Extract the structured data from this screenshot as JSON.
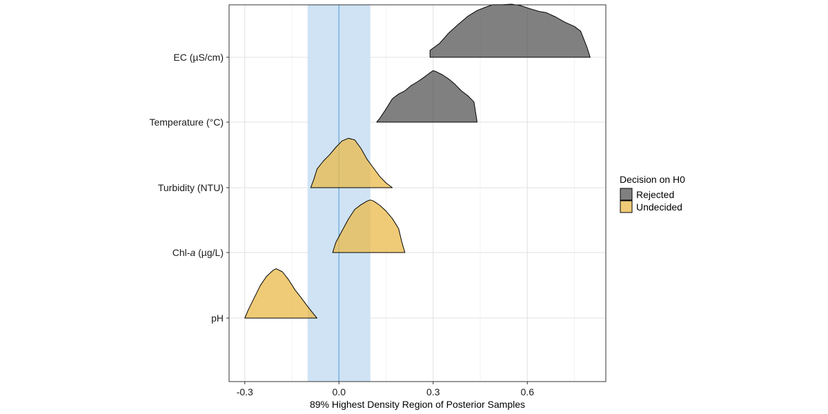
{
  "chart_data": {
    "type": "ridgeline",
    "xlabel": "89% Highest Density Region of Posterior Samples",
    "xlim": [
      -0.35,
      0.85
    ],
    "x_ticks": [
      -0.3,
      0.0,
      0.3,
      0.6
    ],
    "x_tick_labels": [
      "-0.3",
      "0.0",
      "0.3",
      "0.6"
    ],
    "rope": {
      "lower": -0.1,
      "upper": 0.1,
      "center": 0.0,
      "color": "#cfe3f5",
      "line_color": "#7ab0dc"
    },
    "categories": [
      {
        "label": "EC (µS/cm)",
        "label_pre": "EC (µS/cm)",
        "label_italic": "",
        "label_post": ""
      },
      {
        "label": "Temperature (°C)",
        "label_pre": "Temperature (°C)",
        "label_italic": "",
        "label_post": ""
      },
      {
        "label": "Turbidity (NTU)",
        "label_pre": "Turbidity (NTU)",
        "label_italic": "",
        "label_post": ""
      },
      {
        "label": "Chl-a (µg/L)",
        "label_pre": "Chl-",
        "label_italic": "a",
        "label_post": " (µg/L)"
      },
      {
        "label": "pH",
        "label_pre": "pH",
        "label_italic": "",
        "label_post": ""
      }
    ],
    "legend": {
      "title": "Decision on H0",
      "position": "right",
      "entries": [
        {
          "key": "rejected",
          "label": "Rejected",
          "color": "#555555"
        },
        {
          "key": "undecided",
          "label": "Undecided",
          "color": "#e9b949"
        }
      ]
    },
    "grid": true,
    "series": [
      {
        "category": "EC (µS/cm)",
        "decision": "rejected",
        "color": "#555555",
        "density": [
          [
            0.29,
            0.13
          ],
          [
            0.32,
            0.26
          ],
          [
            0.35,
            0.46
          ],
          [
            0.38,
            0.62
          ],
          [
            0.41,
            0.77
          ],
          [
            0.44,
            0.88
          ],
          [
            0.47,
            0.95
          ],
          [
            0.49,
            0.99
          ],
          [
            0.52,
            0.99
          ],
          [
            0.55,
            1.0
          ],
          [
            0.58,
            0.97
          ],
          [
            0.61,
            0.91
          ],
          [
            0.64,
            0.86
          ],
          [
            0.66,
            0.84
          ],
          [
            0.69,
            0.76
          ],
          [
            0.72,
            0.66
          ],
          [
            0.75,
            0.58
          ],
          [
            0.77,
            0.49
          ],
          [
            0.79,
            0.19
          ],
          [
            0.8,
            0.0
          ]
        ]
      },
      {
        "category": "Temperature (°C)",
        "decision": "rejected",
        "color": "#555555",
        "density": [
          [
            0.12,
            0.0
          ],
          [
            0.13,
            0.07
          ],
          [
            0.15,
            0.25
          ],
          [
            0.17,
            0.44
          ],
          [
            0.19,
            0.53
          ],
          [
            0.21,
            0.59
          ],
          [
            0.23,
            0.69
          ],
          [
            0.25,
            0.76
          ],
          [
            0.27,
            0.84
          ],
          [
            0.29,
            0.93
          ],
          [
            0.3,
            0.97
          ],
          [
            0.31,
            0.95
          ],
          [
            0.33,
            0.89
          ],
          [
            0.35,
            0.81
          ],
          [
            0.37,
            0.71
          ],
          [
            0.39,
            0.59
          ],
          [
            0.41,
            0.5
          ],
          [
            0.43,
            0.38
          ],
          [
            0.44,
            0.0
          ]
        ]
      },
      {
        "category": "Turbidity (NTU)",
        "decision": "undecided",
        "color": "#e9b949",
        "density": [
          [
            -0.09,
            0.0
          ],
          [
            -0.08,
            0.16
          ],
          [
            -0.07,
            0.35
          ],
          [
            -0.05,
            0.5
          ],
          [
            -0.03,
            0.62
          ],
          [
            -0.01,
            0.76
          ],
          [
            0.01,
            0.88
          ],
          [
            0.03,
            0.93
          ],
          [
            0.05,
            0.9
          ],
          [
            0.07,
            0.74
          ],
          [
            0.09,
            0.53
          ],
          [
            0.11,
            0.37
          ],
          [
            0.13,
            0.21
          ],
          [
            0.15,
            0.09
          ],
          [
            0.17,
            0.0
          ]
        ]
      },
      {
        "category": "Chl-a (µg/L)",
        "decision": "undecided",
        "color": "#e9b949",
        "density": [
          [
            -0.02,
            0.0
          ],
          [
            -0.01,
            0.19
          ],
          [
            0.01,
            0.41
          ],
          [
            0.03,
            0.63
          ],
          [
            0.05,
            0.81
          ],
          [
            0.07,
            0.9
          ],
          [
            0.09,
            0.97
          ],
          [
            0.1,
            0.99
          ],
          [
            0.11,
            0.97
          ],
          [
            0.13,
            0.89
          ],
          [
            0.15,
            0.78
          ],
          [
            0.17,
            0.64
          ],
          [
            0.19,
            0.45
          ],
          [
            0.2,
            0.2
          ],
          [
            0.21,
            0.0
          ]
        ]
      },
      {
        "category": "pH",
        "decision": "undecided",
        "color": "#e9b949",
        "density": [
          [
            -0.3,
            0.0
          ],
          [
            -0.29,
            0.14
          ],
          [
            -0.27,
            0.38
          ],
          [
            -0.25,
            0.62
          ],
          [
            -0.23,
            0.79
          ],
          [
            -0.21,
            0.9
          ],
          [
            -0.2,
            0.93
          ],
          [
            -0.18,
            0.87
          ],
          [
            -0.16,
            0.72
          ],
          [
            -0.14,
            0.53
          ],
          [
            -0.12,
            0.38
          ],
          [
            -0.1,
            0.22
          ],
          [
            -0.08,
            0.07
          ],
          [
            -0.07,
            0.0
          ]
        ]
      }
    ]
  }
}
